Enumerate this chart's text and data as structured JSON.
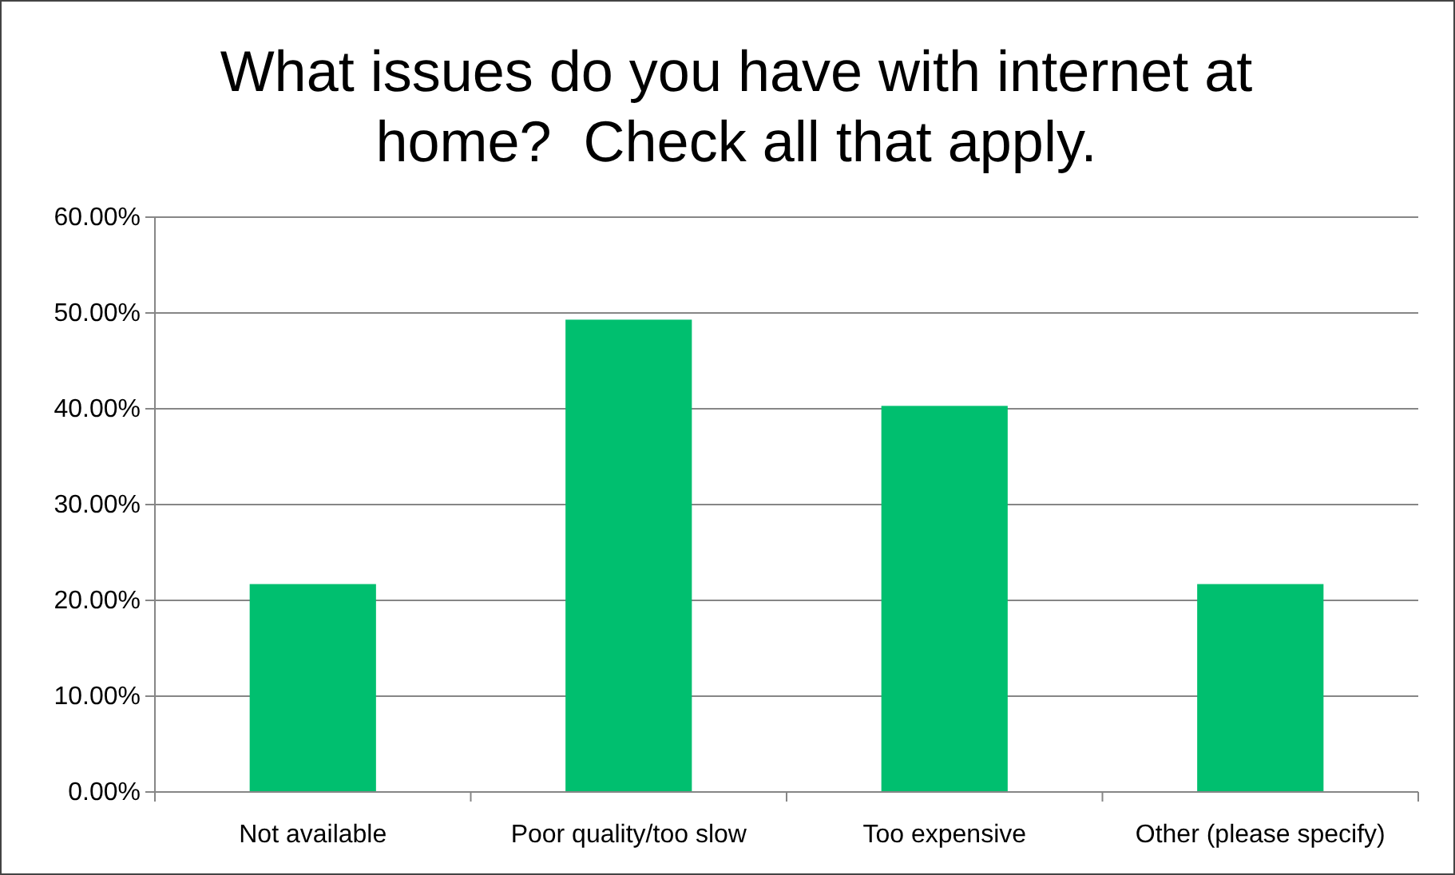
{
  "chart_data": {
    "type": "bar",
    "title": "What issues do you have with internet at home?  Check all that apply.",
    "categories": [
      "Not available",
      "Poor quality/too slow",
      "Too expensive",
      "Other (please specify)"
    ],
    "values": [
      21.7,
      49.3,
      40.3,
      21.7
    ],
    "color": "#00bf6f",
    "ylim": [
      0,
      60
    ],
    "yticks": [
      {
        "value": 0,
        "label": "0.00%"
      },
      {
        "value": 10,
        "label": "10.00%"
      },
      {
        "value": 20,
        "label": "20.00%"
      },
      {
        "value": 30,
        "label": "30.00%"
      },
      {
        "value": 40,
        "label": "40.00%"
      },
      {
        "value": 50,
        "label": "50.00%"
      },
      {
        "value": 60,
        "label": "60.00%"
      }
    ],
    "grid": "y"
  }
}
